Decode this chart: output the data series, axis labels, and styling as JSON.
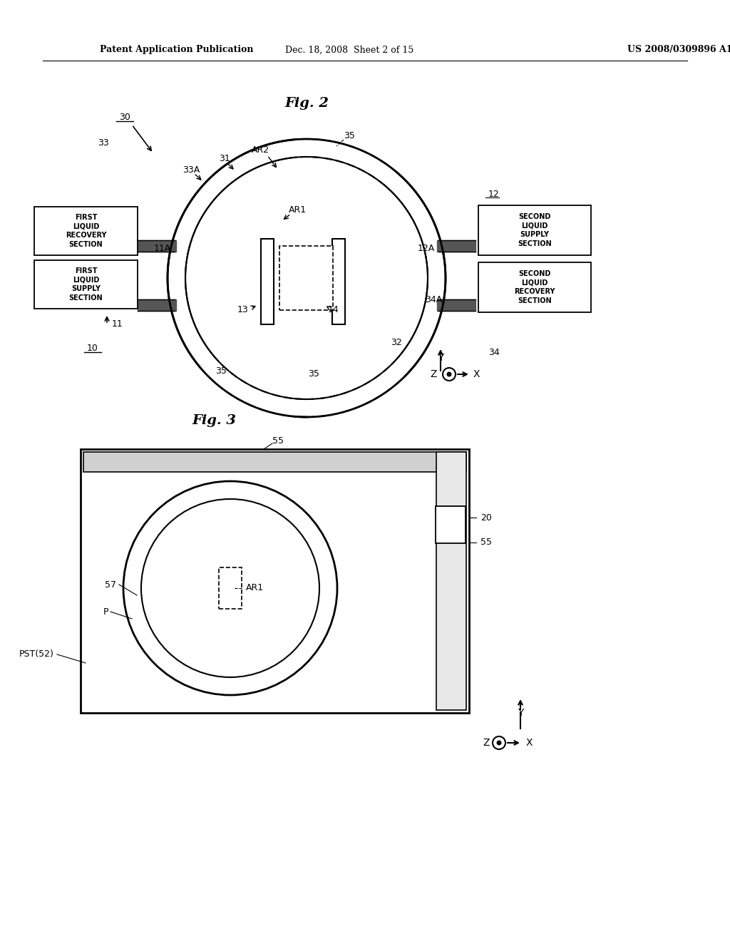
{
  "bg_color": "#ffffff",
  "header_left": "Patent Application Publication",
  "header_mid": "Dec. 18, 2008  Sheet 2 of 15",
  "header_right": "US 2008/0309896 A1",
  "fig2_title": "Fig. 2",
  "fig3_title": "Fig. 3",
  "line_color": "#000000",
  "text_color": "#000000"
}
